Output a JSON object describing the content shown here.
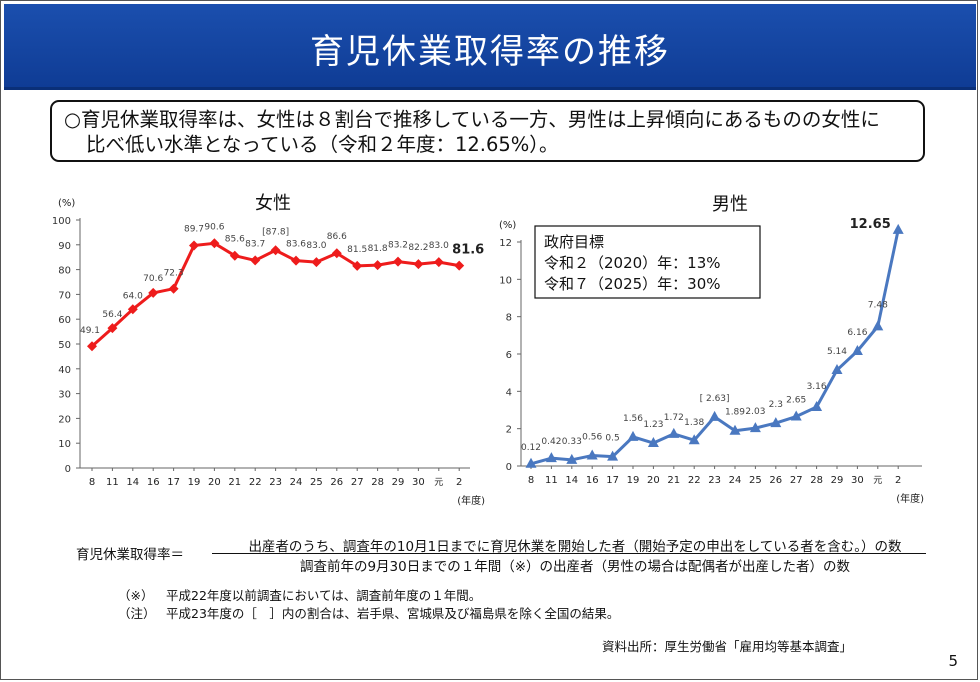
{
  "header": {
    "title": "育児休業取得率の推移"
  },
  "summary": {
    "line1": "○育児休業取得率は、女性は８割台で推移している一方、男性は上昇傾向にあるものの女性に",
    "line2": "比べ低い水準となっている（令和２年度：12.65%）。"
  },
  "chart_data": [
    {
      "type": "line",
      "title": "女性",
      "ylabel": "(%)",
      "xlabel": "(年度)",
      "ylim": [
        0,
        100
      ],
      "yticks": [
        0,
        10,
        20,
        30,
        40,
        50,
        60,
        70,
        80,
        90,
        100
      ],
      "color": "#ee1c1c",
      "marker": "diamond",
      "categories": [
        "8",
        "11",
        "14",
        "16",
        "17",
        "19",
        "20",
        "21",
        "22",
        "23",
        "24",
        "25",
        "26",
        "27",
        "28",
        "29",
        "30",
        "元",
        "2"
      ],
      "values": [
        49.1,
        56.4,
        64.0,
        70.6,
        72.3,
        89.7,
        90.6,
        85.6,
        83.7,
        87.8,
        83.6,
        83.0,
        86.6,
        81.5,
        81.8,
        83.2,
        82.2,
        83.0,
        81.6
      ],
      "labels": [
        "49.1",
        "56.4",
        "64.0",
        "70.6",
        "72.3",
        "89.7",
        "90.6",
        "85.6",
        "83.7",
        "[87.8]",
        "83.6",
        "83.0",
        "86.6",
        "81.5",
        "81.8",
        "83.2",
        "82.2",
        "83.0",
        "81.6"
      ],
      "grid": false
    },
    {
      "type": "line",
      "title": "男性",
      "ylabel": "(%)",
      "xlabel": "(年度)",
      "ylim": [
        0,
        14
      ],
      "yticks": [
        0,
        2,
        4,
        6,
        8,
        10,
        12
      ],
      "color": "#4a78c0",
      "marker": "triangle",
      "categories": [
        "8",
        "11",
        "14",
        "16",
        "17",
        "19",
        "20",
        "21",
        "22",
        "23",
        "24",
        "25",
        "26",
        "27",
        "28",
        "29",
        "30",
        "元",
        "2"
      ],
      "values": [
        0.12,
        0.42,
        0.33,
        0.56,
        0.5,
        1.56,
        1.23,
        1.72,
        1.38,
        2.63,
        1.89,
        2.03,
        2.3,
        2.65,
        3.16,
        5.14,
        6.16,
        7.48,
        12.65
      ],
      "labels": [
        "0.12",
        "0.42",
        "0.33",
        "0.56",
        "0.5",
        "1.56",
        "1.23",
        "1.72",
        "1.38",
        "[ 2.63]",
        "1.89",
        "2.03",
        "2.3",
        "2.65",
        "3.16",
        "5.14",
        "6.16",
        "7.48",
        "12.65"
      ],
      "grid": false,
      "annotation": {
        "line1": "政府目標",
        "line2": "令和２（2020）年：13%",
        "line3": "令和７（2025）年：30%"
      }
    }
  ],
  "formula": {
    "left": "育児休業取得率＝",
    "numerator": "出産者のうち、調査年の10月1日までに育児休業を開始した者（開始予定の申出をしている者を含む。）の数",
    "denominator": "調査前年の9月30日までの１年間（※）の出産者（男性の場合は配偶者が出産した者）の数"
  },
  "notes": [
    {
      "mark": "（※）",
      "text": "平成22年度以前調査においては、調査前年度の１年間。"
    },
    {
      "mark": "（注）",
      "text": "平成23年度の［　］内の割合は、岩手県、宮城県及び福島県を除く全国の結果。"
    }
  ],
  "source": "資料出所：厚生労働省「雇用均等基本調査」",
  "page_number": "5"
}
